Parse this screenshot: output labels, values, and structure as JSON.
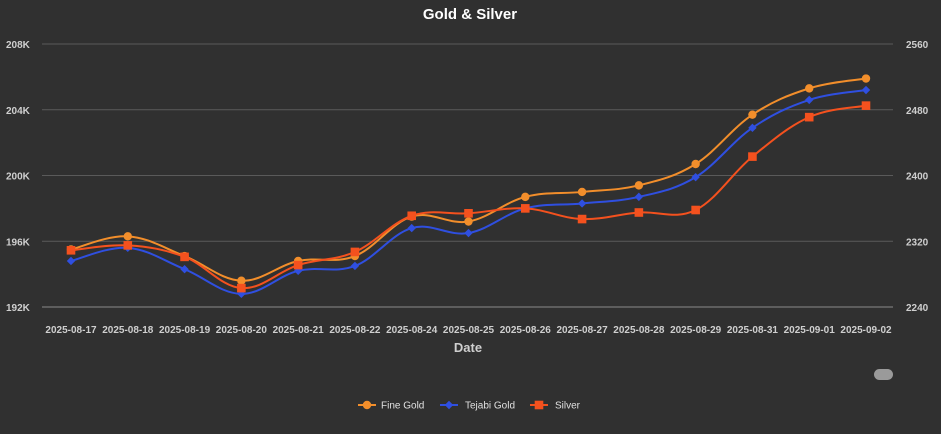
{
  "chart_data": {
    "type": "line",
    "title": "Gold & Silver",
    "xlabel": "Date",
    "ylabel_left": "",
    "ylabel_right": "",
    "categories": [
      "2025-08-17",
      "2025-08-18",
      "2025-08-19",
      "2025-08-20",
      "2025-08-21",
      "2025-08-22",
      "2025-08-24",
      "2025-08-25",
      "2025-08-26",
      "2025-08-27",
      "2025-08-28",
      "2025-08-29",
      "2025-08-31",
      "2025-09-01",
      "2025-09-02"
    ],
    "y_left": {
      "min": 192000,
      "max": 208000,
      "ticks": [
        192000,
        196000,
        200000,
        204000,
        208000
      ],
      "tick_labels": [
        "192K",
        "196K",
        "200K",
        "204K",
        "208K"
      ]
    },
    "y_right": {
      "min": 2240,
      "max": 2560,
      "ticks": [
        2240,
        2320,
        2400,
        2480,
        2560
      ],
      "tick_labels": [
        "2240",
        "2320",
        "2400",
        "2480",
        "2560"
      ]
    },
    "series": [
      {
        "name": "Fine Gold",
        "axis": "left",
        "color": "#f28e2b",
        "marker": "circle",
        "values": [
          195500,
          196300,
          195100,
          193600,
          194800,
          195100,
          197500,
          197200,
          198700,
          199000,
          199400,
          200700,
          203700,
          205300,
          205900
        ]
      },
      {
        "name": "Tejabi Gold",
        "axis": "left",
        "color": "#2f4fe0",
        "marker": "diamond",
        "values": [
          194800,
          195600,
          194300,
          192800,
          194200,
          194500,
          196800,
          196500,
          198000,
          198300,
          198700,
          199900,
          202900,
          204600,
          205200
        ]
      },
      {
        "name": "Silver",
        "axis": "right",
        "color": "#f4511e",
        "marker": "square",
        "values": [
          2309,
          2315,
          2301,
          2263,
          2291,
          2307,
          2351,
          2354,
          2360,
          2347,
          2355,
          2358,
          2423,
          2471,
          2485
        ]
      }
    ],
    "legend_position": "bottom-center",
    "grid": true
  }
}
